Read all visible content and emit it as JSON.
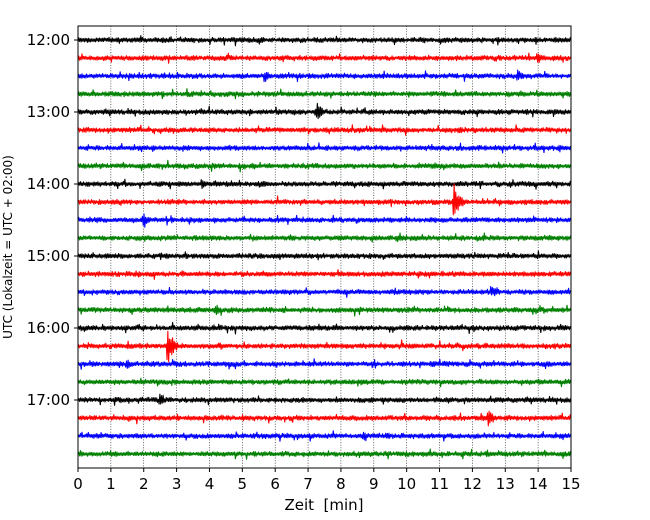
{
  "chart_data": {
    "type": "line",
    "title": "",
    "xlabel": "Zeit  [min]",
    "ylabel": "UTC (Lokalzeit = UTC + 02:00)",
    "xlim": [
      0,
      15
    ],
    "x_ticks": [
      "0",
      "1",
      "2",
      "3",
      "4",
      "5",
      "6",
      "7",
      "8",
      "9",
      "10",
      "11",
      "12",
      "13",
      "14",
      "15"
    ],
    "y_tick_labels": [
      "12:00",
      "13:00",
      "14:00",
      "15:00",
      "16:00",
      "17:00"
    ],
    "trace_start_times": [
      "12:00",
      "12:15",
      "12:30",
      "12:45",
      "13:00",
      "13:15",
      "13:30",
      "13:45",
      "14:00",
      "14:15",
      "14:30",
      "14:45",
      "15:00",
      "15:15",
      "15:30",
      "15:45",
      "16:00",
      "16:15",
      "16:30",
      "16:45",
      "17:00",
      "17:15",
      "17:30",
      "17:45"
    ],
    "trace_duration_min": 15,
    "color_cycle": [
      "#000000",
      "#ff0000",
      "#0000ff",
      "#008000"
    ],
    "grid": "vertical dotted at each minute",
    "events": [
      {
        "trace": "12:15",
        "minute": 14.0,
        "amplitude": "small"
      },
      {
        "trace": "12:30",
        "minute": 5.7,
        "amplitude": "small"
      },
      {
        "trace": "12:30",
        "minute": 13.4,
        "amplitude": "small"
      },
      {
        "trace": "13:00",
        "minute": 7.3,
        "amplitude": "medium"
      },
      {
        "trace": "14:00",
        "minute": 3.8,
        "amplitude": "small"
      },
      {
        "trace": "14:15",
        "minute": 11.45,
        "amplitude": "large"
      },
      {
        "trace": "14:30",
        "minute": 2.0,
        "amplitude": "medium"
      },
      {
        "trace": "15:30",
        "minute": 12.6,
        "amplitude": "small"
      },
      {
        "trace": "15:45",
        "minute": 4.2,
        "amplitude": "small"
      },
      {
        "trace": "16:15",
        "minute": 2.75,
        "amplitude": "large"
      },
      {
        "trace": "16:30",
        "minute": 1.5,
        "amplitude": "small"
      },
      {
        "trace": "17:00",
        "minute": 2.5,
        "amplitude": "small"
      },
      {
        "trace": "17:15",
        "minute": 12.5,
        "amplitude": "medium"
      },
      {
        "trace": "17:30",
        "minute": 8.7,
        "amplitude": "small"
      }
    ]
  }
}
